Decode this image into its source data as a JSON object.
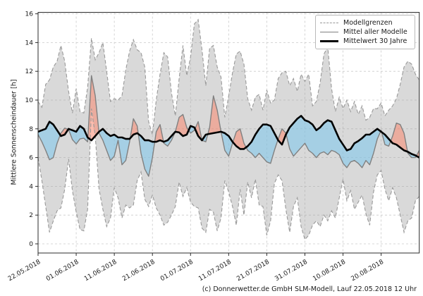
{
  "figure": {
    "ylabel": "Mittlere Sonnenscheindauer [h]",
    "footer": "(c) Donnerwetter.de GmbH SLM-Modell, Lauf 22.05.2018 12 Uhr"
  },
  "chart_data": {
    "type": "line",
    "title": "",
    "xlabel": "",
    "ylabel": "Mittlere Sonnenscheindauer [h]",
    "grid": true,
    "legend_position": "upper right",
    "legend": {
      "items": [
        {
          "label": "Modellgrenzen",
          "style": "dashed-gray"
        },
        {
          "label": "Mittel aller Modelle",
          "style": "solid-gray"
        },
        {
          "label": "Mittelwert 30 Jahre",
          "style": "solid-black-bold"
        }
      ]
    },
    "x_unit": "days since 22.05.2018",
    "x_start": 0,
    "x_step": 1,
    "xlim": [
      0,
      100
    ],
    "ylim": [
      -0.65,
      16.1
    ],
    "y_ticks": [
      0,
      2,
      4,
      6,
      8,
      10,
      12,
      14,
      16
    ],
    "x_tick_days": [
      0,
      10,
      20,
      30,
      40,
      50,
      60,
      70,
      80,
      90
    ],
    "x_tick_labels": [
      "22.05.2018",
      "01.06.2018",
      "11.06.2018",
      "21.06.2018",
      "01.07.2018",
      "11.07.2018",
      "21.07.2018",
      "31.07.2018",
      "10.08.2018",
      "20.08.2018"
    ],
    "colors": {
      "envelope_fill": "rgba(160,160,160,0.40)",
      "envelope_edge": "#999999",
      "mean_line": "#808080",
      "mean30_line": "#000000",
      "above_fill": "rgba(250,135,110,0.55)",
      "below_fill": "rgba(130,200,235,0.60)",
      "grid": "#cacaca",
      "axis": "#2b2b2b",
      "tick_text": "#1a1a1a"
    },
    "series": [
      {
        "name": "Modellgrenzen (obere Grenze)",
        "style": "dashed",
        "values": [
          9.9,
          9.5,
          11.1,
          11.4,
          12.3,
          12.7,
          13.8,
          12.7,
          10.6,
          9.1,
          10.8,
          9.2,
          9.1,
          10.9,
          14.3,
          12.8,
          13.3,
          14.0,
          12.0,
          9.9,
          10.1,
          10.0,
          10.3,
          12.1,
          13.4,
          14.2,
          13.5,
          13.3,
          12.3,
          8.5,
          7.6,
          10.0,
          11.8,
          13.3,
          13.0,
          10.5,
          8.9,
          11.5,
          13.8,
          11.7,
          13.0,
          15.3,
          15.6,
          13.5,
          11.0,
          13.6,
          13.8,
          12.3,
          11.6,
          8.8,
          10.3,
          11.9,
          13.2,
          13.4,
          12.5,
          10.1,
          9.3,
          10.2,
          10.4,
          9.3,
          10.7,
          9.8,
          10.0,
          11.5,
          11.9,
          12.0,
          11.0,
          11.5,
          10.6,
          11.8,
          11.3,
          11.8,
          9.6,
          9.9,
          11.2,
          13.2,
          13.7,
          10.8,
          9.2,
          10.2,
          9.4,
          10.0,
          9.2,
          9.9,
          9.0,
          9.6,
          8.6,
          8.8,
          9.4,
          9.4,
          9.8,
          8.9,
          9.3,
          9.6,
          10.1,
          11.1,
          12.3,
          12.7,
          12.5,
          11.8,
          11.4
        ]
      },
      {
        "name": "Modellgrenzen (untere Grenze)",
        "style": "dashed",
        "values": [
          6.0,
          4.4,
          2.6,
          0.8,
          1.6,
          2.3,
          2.5,
          3.8,
          5.9,
          3.7,
          2.2,
          1.0,
          0.9,
          2.4,
          9.4,
          7.5,
          3.8,
          2.4,
          1.2,
          1.8,
          3.9,
          3.2,
          1.8,
          2.7,
          2.5,
          2.7,
          4.4,
          5.0,
          3.1,
          2.6,
          3.4,
          2.5,
          2.0,
          1.3,
          1.5,
          2.0,
          2.6,
          4.3,
          3.3,
          3.9,
          2.9,
          2.6,
          2.5,
          1.1,
          0.8,
          2.4,
          2.2,
          0.9,
          1.8,
          4.4,
          3.6,
          2.6,
          1.3,
          3.8,
          2.0,
          4.3,
          3.2,
          4.5,
          2.7,
          2.6,
          0.6,
          1.6,
          4.2,
          4.8,
          4.4,
          2.4,
          0.8,
          2.6,
          3.2,
          1.2,
          0.3,
          0.6,
          1.3,
          1.6,
          1.2,
          2.0,
          1.6,
          2.3,
          1.8,
          3.2,
          4.5,
          3.0,
          3.7,
          2.4,
          2.9,
          3.4,
          2.1,
          1.3,
          3.6,
          4.8,
          5.1,
          3.8,
          3.0,
          3.9,
          3.2,
          2.0,
          0.8,
          1.6,
          1.8,
          3.0,
          3.3
        ]
      },
      {
        "name": "Mittel aller Modelle",
        "style": "solid",
        "values": [
          7.6,
          7.1,
          6.5,
          5.85,
          6.0,
          7.0,
          7.7,
          8.05,
          7.95,
          7.25,
          6.95,
          7.3,
          7.35,
          7.1,
          11.7,
          10.3,
          7.7,
          7.2,
          6.5,
          5.8,
          6.1,
          7.2,
          5.5,
          5.8,
          7.1,
          8.7,
          8.2,
          6.3,
          5.2,
          4.7,
          6.0,
          7.8,
          8.3,
          7.0,
          6.8,
          7.2,
          7.8,
          8.8,
          9.0,
          8.1,
          7.7,
          7.9,
          8.5,
          7.2,
          7.1,
          8.1,
          10.3,
          9.3,
          7.8,
          6.5,
          6.1,
          7.0,
          7.8,
          8.0,
          7.0,
          6.5,
          6.3,
          6.0,
          6.3,
          6.0,
          5.7,
          5.6,
          6.5,
          7.3,
          8.0,
          7.7,
          6.6,
          6.1,
          6.4,
          6.7,
          7.0,
          6.5,
          6.3,
          6.0,
          6.3,
          6.4,
          6.2,
          6.5,
          6.4,
          6.2,
          5.6,
          5.3,
          5.7,
          5.8,
          5.6,
          5.3,
          5.8,
          5.5,
          6.3,
          7.3,
          7.9,
          6.9,
          6.8,
          7.5,
          8.4,
          8.3,
          7.7,
          6.3,
          6.0,
          6.0,
          6.5
        ]
      },
      {
        "name": "Mittelwert 30 Jahre",
        "style": "solid-bold",
        "values": [
          7.8,
          7.9,
          8.0,
          8.5,
          8.3,
          7.9,
          7.5,
          7.6,
          8.0,
          7.9,
          7.8,
          8.2,
          8.0,
          7.4,
          7.2,
          7.5,
          7.8,
          8.0,
          7.7,
          7.5,
          7.6,
          7.4,
          7.4,
          7.3,
          7.3,
          7.6,
          7.7,
          7.5,
          7.2,
          7.2,
          7.1,
          7.1,
          7.2,
          7.1,
          7.2,
          7.5,
          7.8,
          7.75,
          7.5,
          7.6,
          8.2,
          8.1,
          7.5,
          7.2,
          7.6,
          7.65,
          7.7,
          7.75,
          7.8,
          7.7,
          7.5,
          7.1,
          6.8,
          6.6,
          6.6,
          6.8,
          7.1,
          7.6,
          8.0,
          8.3,
          8.3,
          8.2,
          7.7,
          7.2,
          6.9,
          7.6,
          8.1,
          8.4,
          8.7,
          8.9,
          8.6,
          8.5,
          8.3,
          7.9,
          8.1,
          8.4,
          8.6,
          8.5,
          7.9,
          7.3,
          6.9,
          6.5,
          6.6,
          7.0,
          7.15,
          7.35,
          7.6,
          7.6,
          7.8,
          8.0,
          7.8,
          7.6,
          7.3,
          7.0,
          6.9,
          6.7,
          6.5,
          6.4,
          6.25,
          6.15,
          6.0
        ]
      }
    ]
  }
}
